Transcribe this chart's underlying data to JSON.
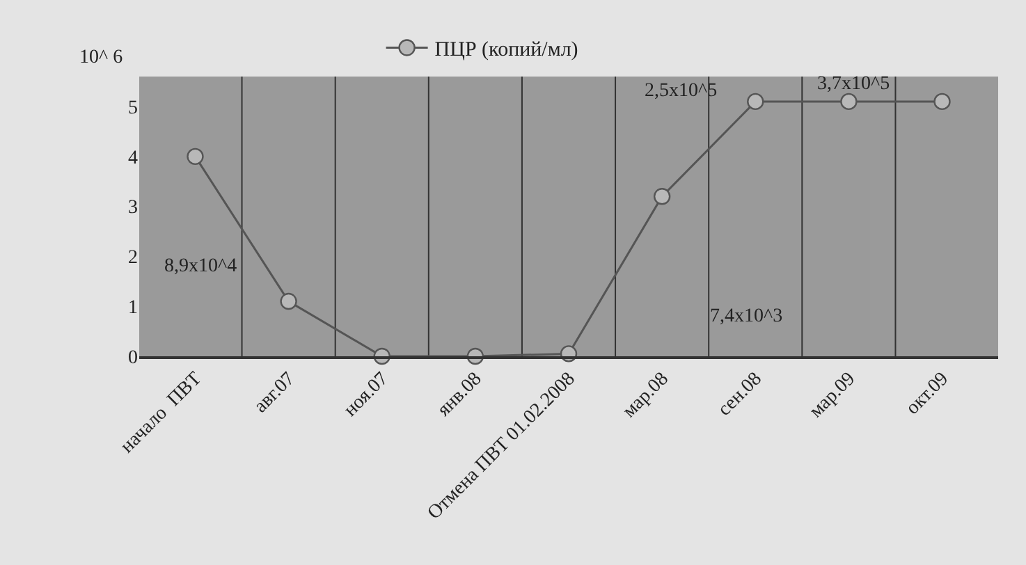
{
  "chart_data": {
    "type": "line",
    "ylabel": "10^ 6",
    "categories": [
      "начало  ПВТ",
      "авг.07",
      "ноя.07",
      "янв.08",
      "Отмена ПВТ 01.02.2008",
      "мар.08",
      "сен.08",
      "мар.09",
      "окт.09"
    ],
    "series": [
      {
        "name": "ПЦР (копий/мл)",
        "color": "#555555",
        "values": [
          4.0,
          1.1,
          0,
          0,
          0.05,
          3.2,
          5.1,
          5.1,
          5.1
        ]
      }
    ],
    "ylim": [
      0,
      5.6
    ],
    "yticks": [
      0,
      1,
      2,
      3,
      4,
      5
    ],
    "annotations": [
      "8,9x10^4",
      "2,5x10^5",
      "7,4x10^3",
      "3,7x10^5"
    ],
    "grid": "x",
    "legend": "top",
    "marker": "circle",
    "line_style": "solid"
  }
}
